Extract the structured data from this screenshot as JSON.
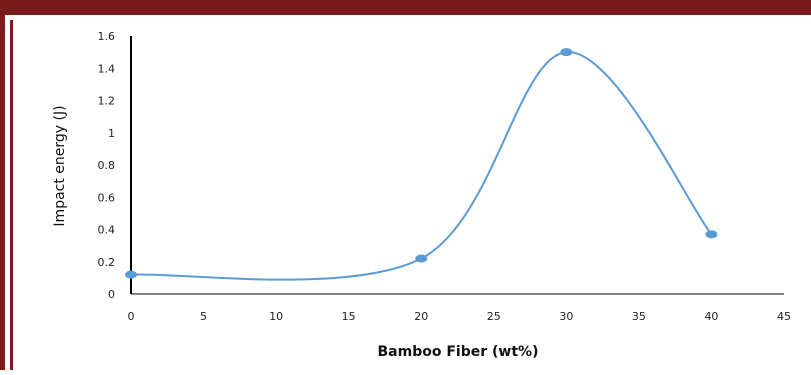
{
  "colors": {
    "frame": "#7b1a1a",
    "line": "#5b9bd5",
    "marker": "#5b9bd5",
    "axis": "#000000"
  },
  "chart_data": {
    "type": "scatter",
    "title": "",
    "xlabel": "Bamboo Fiber (wt%)",
    "ylabel": "Impact energy (J)",
    "xlim": [
      0,
      45
    ],
    "ylim": [
      0,
      1.6
    ],
    "xticks": [
      "0",
      "5",
      "10",
      "15",
      "20",
      "25",
      "30",
      "35",
      "40",
      "45"
    ],
    "yticks": [
      "0",
      "0.2",
      "0.4",
      "0.6",
      "0.8",
      "1",
      "1.2",
      "1.4",
      "1.6"
    ],
    "smooth_lines": true,
    "grid": false,
    "legend": "none",
    "series": [
      {
        "x": [
          0,
          20,
          30,
          40
        ],
        "y": [
          0.12,
          0.22,
          1.5,
          0.37
        ]
      }
    ]
  }
}
